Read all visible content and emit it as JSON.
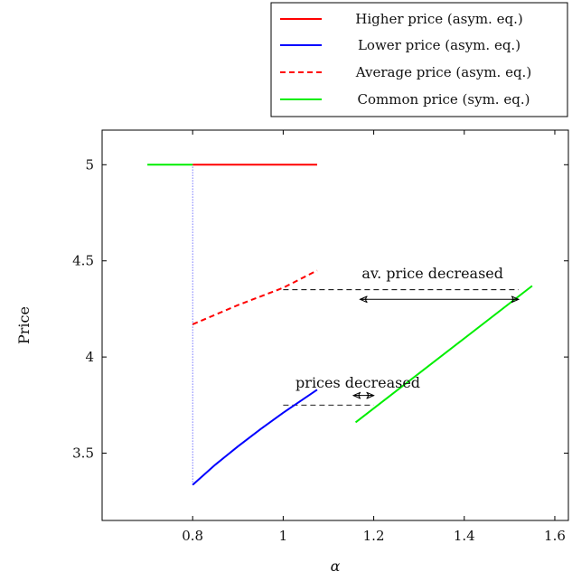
{
  "chart_data": {
    "type": "line",
    "xlabel": "α",
    "ylabel": "Price",
    "xlim": [
      0.6,
      1.63
    ],
    "ylim": [
      3.15,
      5.18
    ],
    "xticks": [
      0.8,
      1,
      1.2,
      1.4,
      1.6
    ],
    "xtick_labels": [
      "0.8",
      "1",
      "1.2",
      "1.4",
      "1.6"
    ],
    "yticks": [
      3.5,
      4,
      4.5,
      5
    ],
    "ytick_labels": [
      "3.5",
      "4",
      "4.5",
      "5"
    ],
    "grid": false,
    "legend_position": "top-right outside",
    "series": [
      {
        "name": "Higher price (asym. eq.)",
        "color": "#ff0000",
        "style": "solid",
        "x": [
          0.8,
          1.075
        ],
        "y": [
          5.0,
          5.0
        ]
      },
      {
        "name": "Lower price (asym. eq.)",
        "color": "#0000ff",
        "style": "solid",
        "x": [
          0.8,
          0.85,
          0.9,
          0.95,
          1.0,
          1.05,
          1.075
        ],
        "y": [
          3.335,
          3.44,
          3.535,
          3.625,
          3.71,
          3.79,
          3.83
        ]
      },
      {
        "name": "Average price (asym. eq.)",
        "color": "#ff0000",
        "style": "dashed",
        "x": [
          0.8,
          0.9,
          1.0,
          1.075
        ],
        "y": [
          4.17,
          4.27,
          4.36,
          4.45
        ]
      },
      {
        "name": "Common price (sym. eq.)",
        "color": "#00ee00",
        "style": "solid",
        "segments": [
          {
            "x": [
              0.7,
              0.8
            ],
            "y": [
              5.0,
              5.0
            ]
          },
          {
            "x": [
              1.16,
              1.55
            ],
            "y": [
              3.66,
              4.37
            ]
          }
        ]
      }
    ],
    "reference_lines": [
      {
        "kind": "vertical-dotted",
        "color": "#0000ff",
        "x": 0.8,
        "y": [
          3.335,
          5.0
        ]
      },
      {
        "kind": "horizontal-dashed",
        "color": "#000000",
        "x": [
          1.0,
          1.52
        ],
        "y": 4.35
      },
      {
        "kind": "horizontal-dashed",
        "color": "#000000",
        "x": [
          1.0,
          1.2
        ],
        "y": 3.75
      }
    ],
    "annotations": [
      {
        "text": "av. price decreased",
        "x": 1.33,
        "y": 4.41,
        "arrow": {
          "x": [
            1.17,
            1.52
          ],
          "y": 4.3
        }
      },
      {
        "text": "prices decreased",
        "x": 1.165,
        "y": 3.84,
        "arrow": {
          "x": [
            1.155,
            1.2
          ],
          "y": 3.8
        }
      }
    ]
  }
}
